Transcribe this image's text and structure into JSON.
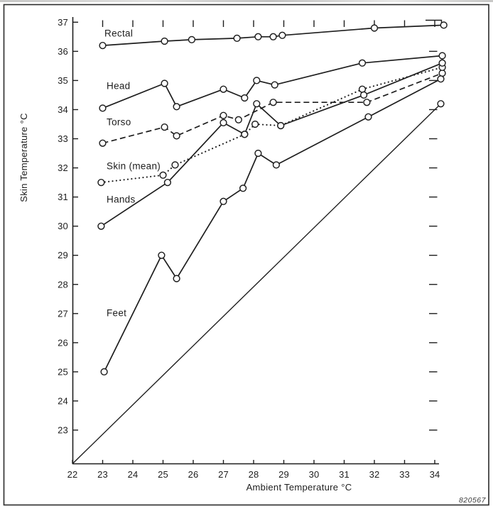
{
  "figure": {
    "figure_number": "820567",
    "background_color": "#ffffff",
    "ink_color": "#1e1e1e"
  },
  "chart_data": {
    "type": "line",
    "title": "",
    "xlabel": "Ambient Temperature °C",
    "ylabel": "Skin Temperature °C",
    "xlim": [
      22,
      34.45
    ],
    "ylim": [
      21.85,
      37.15
    ],
    "x_ticks": [
      22,
      23,
      24,
      25,
      26,
      27,
      28,
      29,
      30,
      31,
      32,
      33,
      34
    ],
    "y_ticks": [
      23,
      24,
      25,
      26,
      27,
      28,
      29,
      30,
      31,
      32,
      33,
      34,
      35,
      36,
      37
    ],
    "top_ticks": [
      23,
      24,
      25,
      26,
      27,
      28,
      29,
      30,
      31,
      32,
      33,
      34
    ],
    "right_ticks": [
      23,
      24,
      25,
      26,
      27,
      28,
      29,
      30,
      31,
      32,
      33,
      34,
      35,
      36
    ],
    "grid": false,
    "legend": "inline-labels",
    "marker": "open-circle",
    "series": [
      {
        "name": "Rectal",
        "key": "rectal",
        "style": "solid",
        "label_pos": [
          23.06,
          36.62
        ],
        "points": [
          [
            23.0,
            36.2
          ],
          [
            25.05,
            36.35
          ],
          [
            25.95,
            36.4
          ],
          [
            27.45,
            36.45
          ],
          [
            28.15,
            36.5
          ],
          [
            28.65,
            36.5
          ],
          [
            28.95,
            36.55
          ],
          [
            32.0,
            36.8
          ],
          [
            34.3,
            36.9
          ]
        ]
      },
      {
        "name": "Head",
        "key": "head",
        "style": "solid",
        "label_pos": [
          23.13,
          34.81
        ],
        "points": [
          [
            23.0,
            34.05
          ],
          [
            25.05,
            34.9
          ],
          [
            25.45,
            34.1
          ],
          [
            27.0,
            34.7
          ],
          [
            27.7,
            34.4
          ],
          [
            28.1,
            35.0
          ],
          [
            28.7,
            34.85
          ],
          [
            31.6,
            35.6
          ],
          [
            34.25,
            35.85
          ]
        ]
      },
      {
        "name": "Torso",
        "key": "torso",
        "style": "dashed",
        "label_pos": [
          23.13,
          33.57
        ],
        "points": [
          [
            23.0,
            32.85
          ],
          [
            25.05,
            33.4
          ],
          [
            25.45,
            33.1
          ],
          [
            27.0,
            33.8
          ],
          [
            27.5,
            33.65
          ],
          [
            28.65,
            34.25
          ],
          [
            31.75,
            34.25
          ],
          [
            34.25,
            35.25
          ]
        ]
      },
      {
        "name": "Skin (mean)",
        "key": "skin-mean",
        "style": "dotted",
        "label_pos": [
          23.13,
          32.06
        ],
        "points": [
          [
            22.95,
            31.5
          ],
          [
            25.0,
            31.75
          ],
          [
            25.4,
            32.1
          ],
          [
            27.7,
            33.15
          ],
          [
            28.05,
            33.5
          ],
          [
            28.9,
            33.45
          ],
          [
            31.6,
            34.7
          ],
          [
            34.25,
            35.45
          ]
        ]
      },
      {
        "name": "Hands",
        "key": "hands",
        "style": "solid",
        "label_pos": [
          23.13,
          30.92
        ],
        "points": [
          [
            22.95,
            30.0
          ],
          [
            25.15,
            31.5
          ],
          [
            27.0,
            33.55
          ],
          [
            27.7,
            33.15
          ],
          [
            28.1,
            34.2
          ],
          [
            28.9,
            33.45
          ],
          [
            31.65,
            34.5
          ],
          [
            34.25,
            35.6
          ]
        ]
      },
      {
        "name": "Feet",
        "key": "feet",
        "style": "solid",
        "label_pos": [
          23.13,
          27.02
        ],
        "points": [
          [
            23.05,
            25.0
          ],
          [
            24.95,
            29.0
          ],
          [
            25.45,
            28.2
          ],
          [
            27.0,
            30.85
          ],
          [
            27.65,
            31.3
          ],
          [
            28.15,
            32.5
          ],
          [
            28.75,
            32.1
          ],
          [
            31.8,
            33.75
          ],
          [
            34.2,
            35.05
          ]
        ]
      }
    ],
    "reference_line": {
      "description": "diagonal line where skin temperature equals ambient temperature",
      "points": [
        [
          22,
          22
        ],
        [
          34.2,
          34.2
        ]
      ],
      "end_marker": true,
      "style": "solid"
    }
  }
}
